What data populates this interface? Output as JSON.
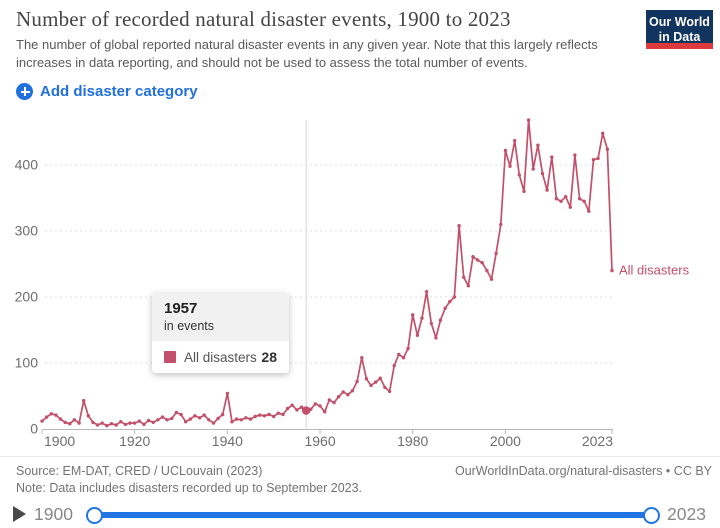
{
  "header": {
    "title": "Number of recorded natural disaster events, 1900 to 2023",
    "subtitle": "The number of global reported natural disaster events in any given year. Note that this largely reflects increases in data reporting, and should not be used to assess the total number of events.",
    "logo": {
      "line1": "Our World",
      "line2": "in Data"
    }
  },
  "controls": {
    "add_button_label": "Add disaster category"
  },
  "colors": {
    "accent_blue": "#2270dd",
    "slider_blue": "#2176e3",
    "series_rose": "#c2506b",
    "logo_navy": "#12355f",
    "logo_red": "#dc3a3c",
    "grid_gray": "#dedede",
    "axis_gray": "#b8b8b8",
    "tick_text_gray": "#6e6e6e"
  },
  "tooltip": {
    "year": "1957",
    "unit_label": "in events",
    "series_label": "All disasters",
    "value": "28",
    "swatch_color": "#c2506b"
  },
  "chart_data": {
    "type": "line",
    "title": "Number of recorded natural disaster events, 1900 to 2023",
    "xlabel": "",
    "ylabel": "",
    "x_start": 1900,
    "x_end": 2023,
    "x_step": 1,
    "xticks": [
      1900,
      1920,
      1940,
      1960,
      1980,
      2000,
      2023
    ],
    "yticks": [
      0,
      100,
      200,
      300,
      400
    ],
    "ylim": [
      0,
      470
    ],
    "grid": "dashed-horizontal",
    "legend_position": "end-of-line-label",
    "end_label": "All disasters",
    "highlight": {
      "year": 1957,
      "value": 28
    },
    "series": [
      {
        "name": "All disasters",
        "color": "#c2506b",
        "values": [
          12,
          18,
          23,
          21,
          15,
          10,
          8,
          14,
          9,
          43,
          20,
          10,
          6,
          9,
          5,
          8,
          6,
          11,
          7,
          9,
          9,
          12,
          7,
          13,
          10,
          14,
          18,
          14,
          16,
          25,
          22,
          11,
          15,
          20,
          17,
          21,
          14,
          9,
          16,
          22,
          54,
          11,
          15,
          14,
          17,
          15,
          19,
          21,
          20,
          22,
          19,
          24,
          22,
          31,
          36,
          29,
          33,
          28,
          30,
          38,
          35,
          26,
          44,
          40,
          49,
          56,
          52,
          58,
          72,
          108,
          76,
          66,
          71,
          77,
          63,
          57,
          96,
          113,
          108,
          122,
          173,
          142,
          168,
          208,
          160,
          138,
          165,
          183,
          193,
          200,
          308,
          230,
          217,
          261,
          256,
          252,
          240,
          227,
          266,
          310,
          422,
          398,
          437,
          385,
          360,
          468,
          394,
          430,
          387,
          362,
          412,
          349,
          345,
          352,
          336,
          415,
          349,
          345,
          330,
          408,
          410,
          448,
          424,
          240
        ]
      }
    ]
  },
  "footer": {
    "source": "Source: EM-DAT, CRED / UCLouvain (2023)",
    "note": "Note: Data includes disasters recorded up to September 2023.",
    "link": "OurWorldInData.org/natural-disasters • CC BY"
  },
  "timeline": {
    "start": "1900",
    "end": "2023"
  }
}
